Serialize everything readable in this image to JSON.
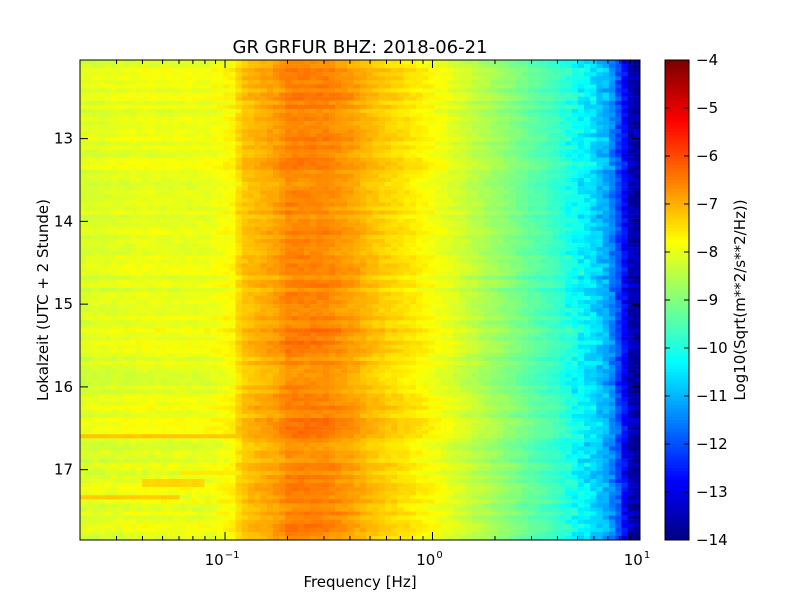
{
  "chart_data": {
    "type": "heatmap",
    "title": "GR GRFUR BHZ: 2018-06-21",
    "xlabel": "Frequency [Hz]",
    "ylabel": "Lokalzeit (UTC + 2 Stunde)",
    "colorbar_label": "Log10(Sqrt(m**2/s**2/Hz))",
    "x_scale": "log",
    "xlim": [
      0.02,
      10
    ],
    "ylim": [
      12.05,
      17.85
    ],
    "y_inverted": true,
    "grid": false,
    "colormap": "jet",
    "color_range": [
      -14,
      -4
    ],
    "x_ticks": [
      {
        "value": 0.1,
        "base": "10",
        "exp": "−1"
      },
      {
        "value": 1,
        "base": "10",
        "exp": "0"
      },
      {
        "value": 10,
        "base": "10",
        "exp": "1"
      }
    ],
    "y_ticks": [
      {
        "value": 13,
        "label": "13"
      },
      {
        "value": 14,
        "label": "14"
      },
      {
        "value": 15,
        "label": "15"
      },
      {
        "value": 16,
        "label": "16"
      },
      {
        "value": 17,
        "label": "17"
      }
    ],
    "colorbar_ticks": [
      {
        "value": -4,
        "label": "−4"
      },
      {
        "value": -5,
        "label": "−5"
      },
      {
        "value": -6,
        "label": "−6"
      },
      {
        "value": -7,
        "label": "−7"
      },
      {
        "value": -8,
        "label": "−8"
      },
      {
        "value": -9,
        "label": "−9"
      },
      {
        "value": -10,
        "label": "−10"
      },
      {
        "value": -11,
        "label": "−11"
      },
      {
        "value": -12,
        "label": "−12"
      },
      {
        "value": -13,
        "label": "−13"
      },
      {
        "value": -14,
        "label": "−14"
      }
    ],
    "spectrum_profile": [
      {
        "freq": 0.02,
        "value": -8.1
      },
      {
        "freq": 0.04,
        "value": -7.95
      },
      {
        "freq": 0.06,
        "value": -7.95
      },
      {
        "freq": 0.08,
        "value": -7.95
      },
      {
        "freq": 0.11,
        "value": -7.7
      },
      {
        "freq": 0.12,
        "value": -7.2
      },
      {
        "freq": 0.16,
        "value": -6.9
      },
      {
        "freq": 0.18,
        "value": -6.8
      },
      {
        "freq": 0.2,
        "value": -6.55
      },
      {
        "freq": 0.3,
        "value": -6.55
      },
      {
        "freq": 0.4,
        "value": -6.8
      },
      {
        "freq": 0.5,
        "value": -7.1
      },
      {
        "freq": 0.6,
        "value": -7.3
      },
      {
        "freq": 0.8,
        "value": -7.55
      },
      {
        "freq": 1.0,
        "value": -7.8
      },
      {
        "freq": 1.2,
        "value": -8.0
      },
      {
        "freq": 1.5,
        "value": -8.3
      },
      {
        "freq": 2.0,
        "value": -8.7
      },
      {
        "freq": 3.0,
        "value": -9.3
      },
      {
        "freq": 4.0,
        "value": -9.7
      },
      {
        "freq": 5.0,
        "value": -10.2
      },
      {
        "freq": 6.0,
        "value": -10.6
      },
      {
        "freq": 7.0,
        "value": -11.1
      },
      {
        "freq": 8.0,
        "value": -12.2
      },
      {
        "freq": 9.0,
        "value": -13.4
      },
      {
        "freq": 10.0,
        "value": -13.8
      }
    ],
    "highlight_segments": [
      {
        "time_start": 16.55,
        "time_end": 16.6,
        "freq_start": 0.02,
        "freq_end": 0.11,
        "value": -7.2
      },
      {
        "time_start": 17.1,
        "time_end": 17.22,
        "freq_start": 0.04,
        "freq_end": 0.08,
        "value": -7.35
      },
      {
        "time_start": 17.3,
        "time_end": 17.35,
        "freq_start": 0.02,
        "freq_end": 0.06,
        "value": -7.25
      },
      {
        "time_start": 17.02,
        "time_end": 17.08,
        "freq_start": 0.06,
        "freq_end": 0.11,
        "value": -7.55
      }
    ],
    "time_bin_count": 118,
    "freq_bin_count": 90
  }
}
